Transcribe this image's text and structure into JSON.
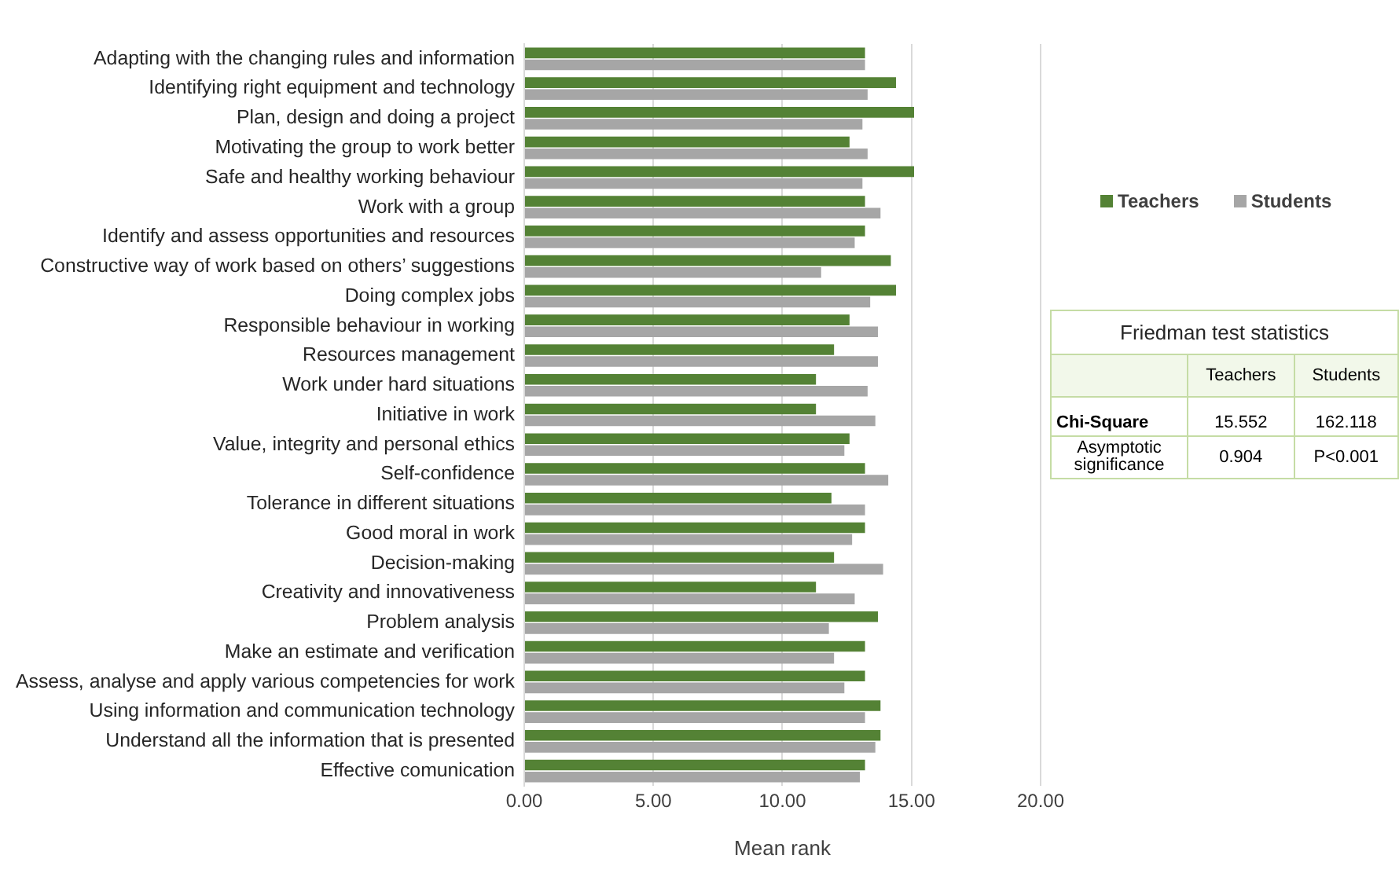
{
  "chart_data": {
    "type": "bar",
    "orientation": "horizontal",
    "xlabel": "Mean rank",
    "categories": [
      "Adapting with the changing rules and information",
      "Identifying right equipment and technology",
      "Plan, design and doing a project",
      "Motivating the group to work better",
      "Safe and healthy working behaviour",
      "Work with a group",
      "Identify and assess opportunities and resources",
      "Constructive way of work based on others’ suggestions",
      "Doing complex jobs",
      "Responsible behaviour in working",
      "Resources management",
      "Work under hard situations",
      "Initiative in work",
      "Value, integrity and personal ethics",
      "Self-confidence",
      "Tolerance in different situations",
      "Good moral in work",
      "Decision-making",
      "Creativity and innovativeness",
      "Problem analysis",
      "Make an estimate and verification",
      "Assess, analyse and apply various competencies for work",
      "Using information and communication technology",
      "Understand all the information that is presented",
      "Effective comunication"
    ],
    "series": [
      {
        "name": "Teachers",
        "color": "#548235",
        "values": [
          13.2,
          14.4,
          15.1,
          12.6,
          15.1,
          13.2,
          13.2,
          14.2,
          14.4,
          12.6,
          12.0,
          11.3,
          11.3,
          12.6,
          13.2,
          11.9,
          13.2,
          12.0,
          11.3,
          13.7,
          13.2,
          13.2,
          13.8,
          13.8,
          13.2
        ]
      },
      {
        "name": "Students",
        "color": "#a6a6a6",
        "values": [
          13.2,
          13.3,
          13.1,
          13.3,
          13.1,
          13.8,
          12.8,
          11.5,
          13.4,
          13.7,
          13.7,
          13.3,
          13.6,
          12.4,
          14.1,
          13.2,
          12.7,
          13.9,
          12.8,
          11.8,
          12.0,
          12.4,
          13.2,
          13.6,
          13.0
        ]
      }
    ],
    "xlim": [
      0,
      20
    ],
    "xticks": [
      {
        "value": 0,
        "label": "0.00"
      },
      {
        "value": 5,
        "label": "5.00"
      },
      {
        "value": 10,
        "label": "10.00"
      },
      {
        "value": 15,
        "label": "15.00"
      },
      {
        "value": 20,
        "label": "20.00"
      }
    ],
    "grid": "x",
    "legend": "right",
    "annotations": [
      "Friedman test statistics",
      "Chi-Square",
      "15.552",
      "162.118",
      "Asymptotic significance",
      "0.904",
      "P<0.001"
    ]
  }
}
